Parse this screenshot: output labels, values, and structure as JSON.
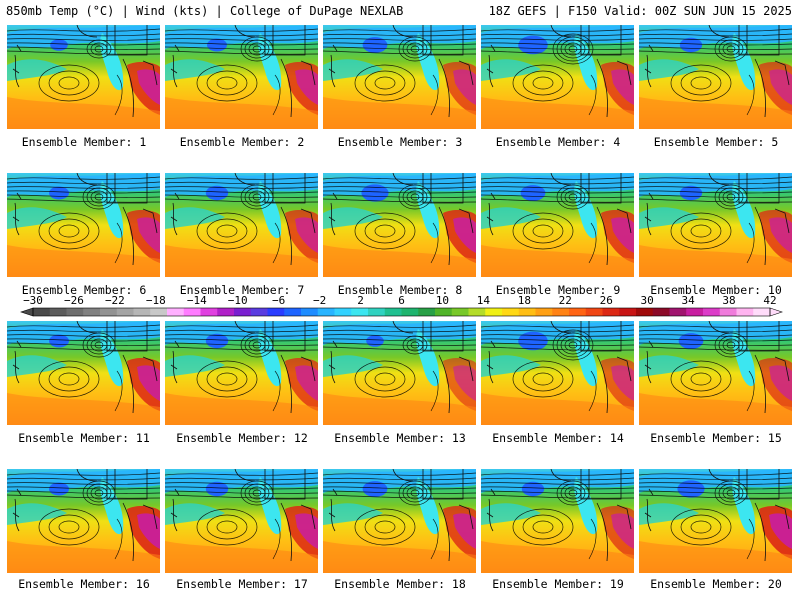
{
  "header": {
    "left": "850mb Temp (°C) | Wind (kts) | College of DuPage NEXLAB",
    "right": "18Z GEFS | F150 Valid: 00Z SUN JUN 15 2025"
  },
  "members": [
    {
      "label": "Ensemble Member: 1",
      "low_spin": 0.4,
      "heat": 0.85
    },
    {
      "label": "Ensemble Member: 2",
      "low_spin": 0.5,
      "heat": 0.8
    },
    {
      "label": "Ensemble Member: 3",
      "low_spin": 0.7,
      "heat": 0.7
    },
    {
      "label": "Ensemble Member: 4",
      "low_spin": 0.9,
      "heat": 0.75
    },
    {
      "label": "Ensemble Member: 5",
      "low_spin": 0.6,
      "heat": 0.7
    },
    {
      "label": "Ensemble Member: 6",
      "low_spin": 0.5,
      "heat": 0.8
    },
    {
      "label": "Ensemble Member: 7",
      "low_spin": 0.6,
      "heat": 0.75
    },
    {
      "label": "Ensemble Member: 8",
      "low_spin": 0.8,
      "heat": 0.85
    },
    {
      "label": "Ensemble Member: 9",
      "low_spin": 0.7,
      "heat": 0.8
    },
    {
      "label": "Ensemble Member: 10",
      "low_spin": 0.6,
      "heat": 0.75
    },
    {
      "label": "Ensemble Member: 11",
      "low_spin": 0.5,
      "heat": 0.85
    },
    {
      "label": "Ensemble Member: 12",
      "low_spin": 0.6,
      "heat": 0.75
    },
    {
      "label": "Ensemble Member: 13",
      "low_spin": 0.4,
      "heat": 0.6
    },
    {
      "label": "Ensemble Member: 14",
      "low_spin": 0.9,
      "heat": 0.65
    },
    {
      "label": "Ensemble Member: 15",
      "low_spin": 0.7,
      "heat": 0.7
    },
    {
      "label": "Ensemble Member: 16",
      "low_spin": 0.5,
      "heat": 0.9
    },
    {
      "label": "Ensemble Member: 17",
      "low_spin": 0.6,
      "heat": 0.85
    },
    {
      "label": "Ensemble Member: 18",
      "low_spin": 0.7,
      "heat": 0.8
    },
    {
      "label": "Ensemble Member: 19",
      "low_spin": 0.6,
      "heat": 0.7
    },
    {
      "label": "Ensemble Member: 20",
      "low_spin": 0.8,
      "heat": 0.9
    }
  ],
  "colorbar": {
    "labels": [
      "−30",
      "−26",
      "−22",
      "−18",
      "−14",
      "−10",
      "−6",
      "−2",
      "2",
      "6",
      "10",
      "14",
      "18",
      "22",
      "26",
      "30",
      "34",
      "38",
      "42"
    ],
    "colors": [
      "#4a4a4a",
      "#5c5c5c",
      "#6e6e6e",
      "#808080",
      "#929292",
      "#a4a4a4",
      "#b6b6b6",
      "#c8c8c8",
      "#ffb0ff",
      "#ff7cff",
      "#e040e0",
      "#b020c8",
      "#7a1fd0",
      "#5a3ce0",
      "#2a3cff",
      "#1e64ff",
      "#1e8cff",
      "#28b4ff",
      "#32d2ff",
      "#3ce6f0",
      "#30d2c0",
      "#20c090",
      "#1eb46e",
      "#28a046",
      "#50b428",
      "#78c828",
      "#b4dc28",
      "#f0f014",
      "#ffd814",
      "#ffbe14",
      "#ffa014",
      "#ff8214",
      "#ff6414",
      "#f04614",
      "#dc2814",
      "#c81414",
      "#a00a0a",
      "#8c0a28",
      "#a0146e",
      "#c81ea0",
      "#dc3cc8",
      "#f07cdc",
      "#ffb4f0",
      "#ffdcfa"
    ]
  }
}
